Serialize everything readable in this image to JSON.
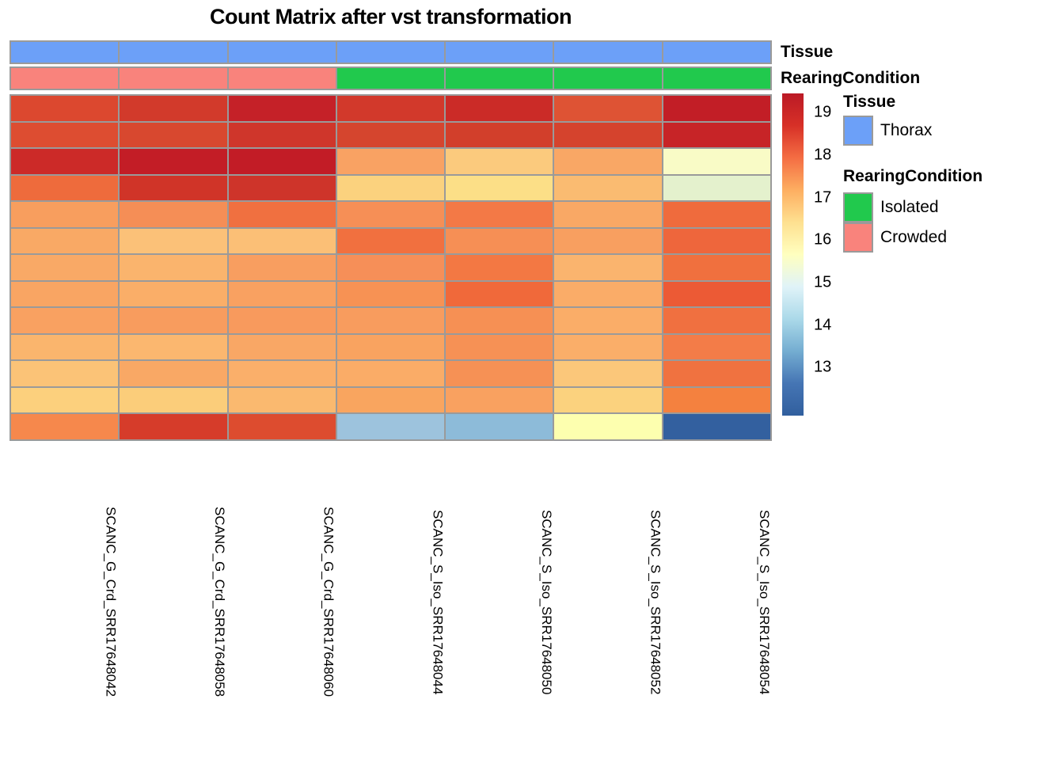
{
  "title": "Count Matrix after vst transformation",
  "column_labels": [
    "SCANC_G_Crd_SRR17648042",
    "SCANC_G_Crd_SRR17648058",
    "SCANC_G_Crd_SRR17648060",
    "SCANC_S_Iso_SRR17648044",
    "SCANC_S_Iso_SRR17648050",
    "SCANC_S_Iso_SRR17648052",
    "SCANC_S_Iso_SRR17648054"
  ],
  "annotation_bars": {
    "tissue": {
      "label": "Tissue",
      "values": [
        "Thorax",
        "Thorax",
        "Thorax",
        "Thorax",
        "Thorax",
        "Thorax",
        "Thorax"
      ]
    },
    "rearing_condition": {
      "label": "RearingCondition",
      "values": [
        "Crowded",
        "Crowded",
        "Crowded",
        "Isolated",
        "Isolated",
        "Isolated",
        "Isolated"
      ]
    }
  },
  "annotation_colors": {
    "Thorax": "#6CA0F8",
    "Isolated": "#21C94D",
    "Crowded": "#F9837C"
  },
  "legend": {
    "tissue_title": "Tissue",
    "tissue_items": [
      {
        "label": "Thorax",
        "color": "#6CA0F8"
      }
    ],
    "rearing_title": "RearingCondition",
    "rearing_items": [
      {
        "label": "Isolated",
        "color": "#21C94D"
      },
      {
        "label": "Crowded",
        "color": "#F9837C"
      }
    ]
  },
  "colorbar": {
    "ticks": [
      19,
      18,
      17,
      16,
      15,
      14,
      13
    ],
    "domain_min": 11.87,
    "domain_max": 19.45,
    "gradient": [
      "#BB1A26",
      "#D73027",
      "#F46D43",
      "#FDAE61",
      "#FEE090",
      "#FFFFBF",
      "#E0F3F8",
      "#ABD9E9",
      "#74ADD1",
      "#4575B4",
      "#315F9E"
    ]
  },
  "chart_data": {
    "type": "heatmap",
    "title": "Count Matrix after vst transformation",
    "columns": [
      "SCANC_G_Crd_SRR17648042",
      "SCANC_G_Crd_SRR17648058",
      "SCANC_G_Crd_SRR17648060",
      "SCANC_S_Iso_SRR17648044",
      "SCANC_S_Iso_SRR17648050",
      "SCANC_S_Iso_SRR17648052",
      "SCANC_S_Iso_SRR17648054"
    ],
    "n_rows": 13,
    "color_scale_ticks": [
      19,
      18,
      17,
      16,
      15,
      14,
      13
    ],
    "values": [
      [
        18.5,
        18.6,
        18.9,
        18.6,
        18.7,
        18.3,
        19.0
      ],
      [
        18.4,
        18.5,
        18.6,
        18.5,
        18.6,
        18.5,
        18.8
      ],
      [
        18.7,
        19.0,
        19.0,
        17.3,
        16.9,
        17.3,
        15.6
      ],
      [
        18.0,
        18.6,
        18.6,
        16.7,
        16.5,
        17.1,
        15.2
      ],
      [
        17.4,
        17.5,
        17.9,
        17.5,
        17.8,
        17.2,
        17.9
      ],
      [
        17.2,
        17.0,
        17.0,
        17.9,
        17.5,
        17.3,
        18.0
      ],
      [
        17.2,
        17.1,
        17.3,
        17.5,
        17.8,
        17.1,
        17.9
      ],
      [
        17.3,
        17.2,
        17.3,
        17.5,
        18.0,
        17.2,
        18.1
      ],
      [
        17.3,
        17.4,
        17.4,
        17.4,
        17.5,
        17.2,
        17.9
      ],
      [
        17.1,
        17.1,
        17.3,
        17.3,
        17.5,
        17.2,
        17.8
      ],
      [
        17.0,
        17.3,
        17.2,
        17.2,
        17.5,
        16.9,
        17.9
      ],
      [
        16.8,
        16.8,
        17.1,
        17.3,
        17.3,
        16.7,
        17.8
      ],
      [
        17.6,
        18.4,
        18.4,
        13.8,
        13.7,
        15.6,
        12.2
      ]
    ],
    "cell_colors": [
      [
        "#DC482F",
        "#D23A2B",
        "#C52128",
        "#D2392B",
        "#CB2B27",
        "#DE5334",
        "#C21E26"
      ],
      [
        "#DD4D31",
        "#D8482F",
        "#CF362B",
        "#D5452E",
        "#D23F2B",
        "#D5432D",
        "#C72427"
      ],
      [
        "#CC2A28",
        "#C31D26",
        "#C21C26",
        "#F9A263",
        "#FBCA7D",
        "#F9A765",
        "#F9FBC6"
      ],
      [
        "#EE6B3C",
        "#D03428",
        "#CE342A",
        "#FBD27E",
        "#FCDF87",
        "#FABB71",
        "#E4F1CD"
      ],
      [
        "#F89E5E",
        "#F58E56",
        "#F07040",
        "#F68F56",
        "#F37946",
        "#F9A865",
        "#EF6B3D"
      ],
      [
        "#F9A965",
        "#FBC178",
        "#FBBF76",
        "#F1703F",
        "#F68F55",
        "#F89F60",
        "#EE663C"
      ],
      [
        "#F9A966",
        "#FAB46D",
        "#F89E60",
        "#F68F58",
        "#F37843",
        "#FAB46E",
        "#F0703E"
      ],
      [
        "#F9A563",
        "#FAAE68",
        "#F9A161",
        "#F79254",
        "#F0693A",
        "#FAAC68",
        "#EC5A35"
      ],
      [
        "#F9A161",
        "#F89C5E",
        "#F89A5D",
        "#F89C5E",
        "#F69054",
        "#FAAD68",
        "#F07040"
      ],
      [
        "#FAB56D",
        "#FBB76F",
        "#F9A765",
        "#F9A360",
        "#F69155",
        "#FAAE69",
        "#F37C48"
      ],
      [
        "#FBC377",
        "#F9A865",
        "#FAAF6A",
        "#FAAC67",
        "#F69155",
        "#FBC77A",
        "#F07240"
      ],
      [
        "#FCD07D",
        "#FBCD7A",
        "#FAB96F",
        "#F9A55F",
        "#F9A160",
        "#FBD27E",
        "#F4813F"
      ],
      [
        "#F6884C",
        "#D63C2A",
        "#DD4C2F",
        "#9DC3DD",
        "#8DBBD9",
        "#FDFFAF",
        "#33609F"
      ]
    ]
  }
}
